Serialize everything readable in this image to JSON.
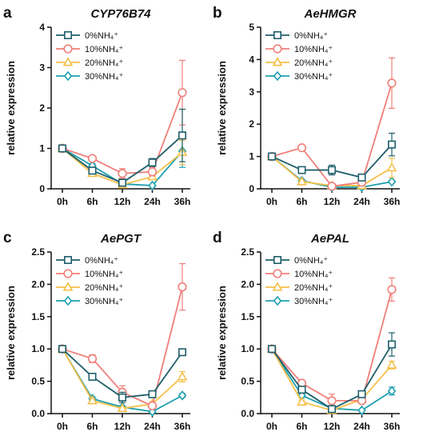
{
  "series_styles": [
    {
      "color": "#1f5f6b",
      "marker": "square"
    },
    {
      "color": "#f07f7a",
      "marker": "circle"
    },
    {
      "color": "#f5c04a",
      "marker": "triangle"
    },
    {
      "color": "#1e9fae",
      "marker": "diamond"
    }
  ],
  "chart_data": [
    {
      "type": "line",
      "letter": "a",
      "title": "CYP76B74",
      "ylabel": "relative expression",
      "xlabel": "",
      "categories": [
        "0h",
        "6h",
        "12h",
        "24h",
        "36h"
      ],
      "ylim": [
        0,
        4
      ],
      "yticks": [
        "0",
        "1",
        "2",
        "3",
        "4"
      ],
      "ytick_values": [
        0,
        1,
        2,
        3,
        4
      ],
      "legend_position": "top-left",
      "series": [
        {
          "name": "0%NH₄⁺",
          "values": [
            1.0,
            0.45,
            0.15,
            0.65,
            1.32
          ],
          "errors": [
            0,
            0.06,
            0.04,
            0.1,
            0.65
          ]
        },
        {
          "name": "10%NH₄⁺",
          "values": [
            1.0,
            0.75,
            0.38,
            0.42,
            2.38
          ],
          "errors": [
            0,
            0.05,
            0.12,
            0.1,
            0.8
          ]
        },
        {
          "name": "20%NH₄⁺",
          "values": [
            1.0,
            0.38,
            0.1,
            0.3,
            0.9
          ],
          "errors": [
            0,
            0.04,
            0.03,
            0.05,
            0.3
          ]
        },
        {
          "name": "30%NH₄⁺",
          "values": [
            1.0,
            0.57,
            0.12,
            0.08,
            0.93
          ],
          "errors": [
            0,
            0.05,
            0.03,
            0.02,
            0.4
          ]
        }
      ]
    },
    {
      "type": "line",
      "letter": "b",
      "title": "AeHMGR",
      "ylabel": "relative expression",
      "xlabel": "",
      "categories": [
        "0h",
        "6h",
        "12h",
        "24h",
        "36h"
      ],
      "ylim": [
        0,
        5
      ],
      "yticks": [
        "0",
        "1",
        "2",
        "3",
        "4",
        "5"
      ],
      "ytick_values": [
        0,
        1,
        2,
        3,
        4,
        5
      ],
      "legend_position": "top-left",
      "series": [
        {
          "name": "0%NH₄⁺",
          "values": [
            1.0,
            0.58,
            0.58,
            0.35,
            1.37
          ],
          "errors": [
            0,
            0.04,
            0.15,
            0.05,
            0.35
          ]
        },
        {
          "name": "10%NH₄⁺",
          "values": [
            1.0,
            1.27,
            0.08,
            0.2,
            3.27
          ],
          "errors": [
            0,
            0.05,
            0.03,
            0.04,
            0.78
          ]
        },
        {
          "name": "20%NH₄⁺",
          "values": [
            1.0,
            0.22,
            0.1,
            0.1,
            0.65
          ],
          "errors": [
            0,
            0.03,
            0.02,
            0.02,
            0.3
          ]
        },
        {
          "name": "30%NH₄⁺",
          "values": [
            1.0,
            0.25,
            0.05,
            0.05,
            0.22
          ],
          "errors": [
            0,
            0.03,
            0.02,
            0.02,
            0.04
          ]
        }
      ]
    },
    {
      "type": "line",
      "letter": "c",
      "title": "AePGT",
      "ylabel": "relative expression",
      "xlabel": "",
      "categories": [
        "0h",
        "6h",
        "12h",
        "24h",
        "36h"
      ],
      "ylim": [
        0,
        2.5
      ],
      "yticks": [
        "0.0",
        "0.5",
        "1.0",
        "1.5",
        "2.0",
        "2.5"
      ],
      "ytick_values": [
        0,
        0.5,
        1.0,
        1.5,
        2.0,
        2.5
      ],
      "legend_position": "top-left",
      "series": [
        {
          "name": "0%NH₄⁺",
          "values": [
            1.0,
            0.57,
            0.25,
            0.3,
            0.95
          ],
          "errors": [
            0,
            0.03,
            0.08,
            0.04,
            0.05
          ]
        },
        {
          "name": "10%NH₄⁺",
          "values": [
            1.0,
            0.85,
            0.33,
            0.12,
            1.96
          ],
          "errors": [
            0,
            0.06,
            0.1,
            0.03,
            0.36
          ]
        },
        {
          "name": "20%NH₄⁺",
          "values": [
            1.0,
            0.2,
            0.08,
            0.15,
            0.57
          ],
          "errors": [
            0,
            0.03,
            0.02,
            0.03,
            0.08
          ]
        },
        {
          "name": "30%NH₄⁺",
          "values": [
            1.0,
            0.23,
            0.1,
            0.03,
            0.28
          ],
          "errors": [
            0,
            0.03,
            0.02,
            0.01,
            0.03
          ]
        }
      ]
    },
    {
      "type": "line",
      "letter": "d",
      "title": "AePAL",
      "ylabel": "relative expression",
      "xlabel": "",
      "categories": [
        "0h",
        "6h",
        "12h",
        "24h",
        "36h"
      ],
      "ylim": [
        0,
        2.5
      ],
      "yticks": [
        "0.0",
        "0.5",
        "1.0",
        "1.5",
        "2.0",
        "2.5"
      ],
      "ytick_values": [
        0,
        0.5,
        1.0,
        1.5,
        2.0,
        2.5
      ],
      "legend_position": "top-left",
      "series": [
        {
          "name": "0%NH₄⁺",
          "values": [
            1.0,
            0.37,
            0.07,
            0.3,
            1.07
          ],
          "errors": [
            0,
            0.04,
            0.03,
            0.04,
            0.18
          ]
        },
        {
          "name": "10%NH₄⁺",
          "values": [
            1.0,
            0.47,
            0.2,
            0.2,
            1.92
          ],
          "errors": [
            0,
            0.04,
            0.1,
            0.03,
            0.18
          ]
        },
        {
          "name": "20%NH₄⁺",
          "values": [
            1.0,
            0.18,
            0.05,
            0.22,
            0.75
          ],
          "errors": [
            0,
            0.03,
            0.02,
            0.03,
            0.06
          ]
        },
        {
          "name": "30%NH₄⁺",
          "values": [
            1.0,
            0.28,
            0.08,
            0.05,
            0.35
          ],
          "errors": [
            0,
            0.03,
            0.02,
            0.01,
            0.06
          ]
        }
      ]
    }
  ]
}
